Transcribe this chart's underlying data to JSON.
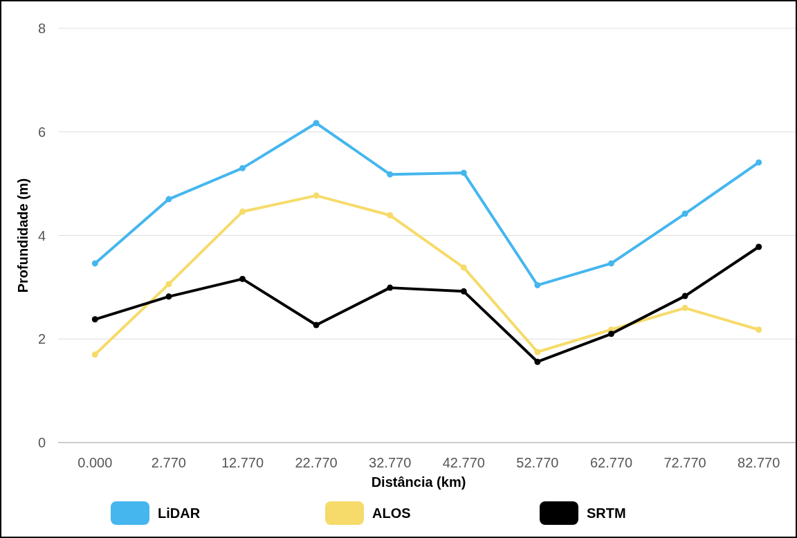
{
  "chart_data": {
    "type": "line",
    "xlabel": "Distância (km)",
    "ylabel": "Profundidade (m)",
    "categories": [
      "0.000",
      "2.770",
      "12.770",
      "22.770",
      "32.770",
      "42.770",
      "52.770",
      "62.770",
      "72.770",
      "82.770"
    ],
    "series": [
      {
        "name": "LiDAR",
        "color": "#45b6ee",
        "values": [
          3.46,
          4.7,
          5.3,
          6.17,
          5.18,
          5.21,
          3.04,
          3.46,
          4.42,
          5.41
        ]
      },
      {
        "name": "ALOS",
        "color": "#f6db6a",
        "values": [
          1.7,
          3.06,
          4.46,
          4.77,
          4.39,
          3.38,
          1.75,
          2.18,
          2.6,
          2.18
        ]
      },
      {
        "name": "SRTM",
        "color": "#000000",
        "values": [
          2.38,
          2.82,
          3.16,
          2.27,
          2.99,
          2.92,
          1.56,
          2.1,
          2.83,
          3.78
        ]
      }
    ],
    "ylim": [
      0,
      8
    ],
    "yticks": [
      0,
      2,
      4,
      6,
      8
    ],
    "grid": "y",
    "legend": "bottom",
    "marker": "circle",
    "line_style": "solid"
  }
}
